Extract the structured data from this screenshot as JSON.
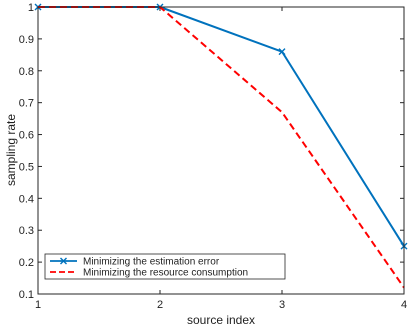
{
  "chart_data": {
    "type": "line",
    "title": "",
    "xlabel": "source index",
    "ylabel": "sampling rate",
    "x": [
      1,
      2,
      3,
      4
    ],
    "xlim": [
      1,
      4
    ],
    "ylim": [
      0.1,
      1
    ],
    "xticks": [
      "1",
      "2",
      "3",
      "4"
    ],
    "yticks": [
      "0.1",
      "0.2",
      "0.3",
      "0.4",
      "0.5",
      "0.6",
      "0.7",
      "0.8",
      "0.9",
      "1"
    ],
    "grid": false,
    "legend_position": "bottom-left",
    "series": [
      {
        "name": "Minimizing the estimation error",
        "values": [
          1.0,
          1.0,
          0.86,
          0.25
        ],
        "color": "#0072BD",
        "line_style": "solid",
        "marker": "x"
      },
      {
        "name": "Minimizing  the resource consumption",
        "values": [
          1.0,
          1.0,
          0.67,
          0.12
        ],
        "color": "#FF0000",
        "line_style": "dashed",
        "marker": "none"
      }
    ]
  }
}
